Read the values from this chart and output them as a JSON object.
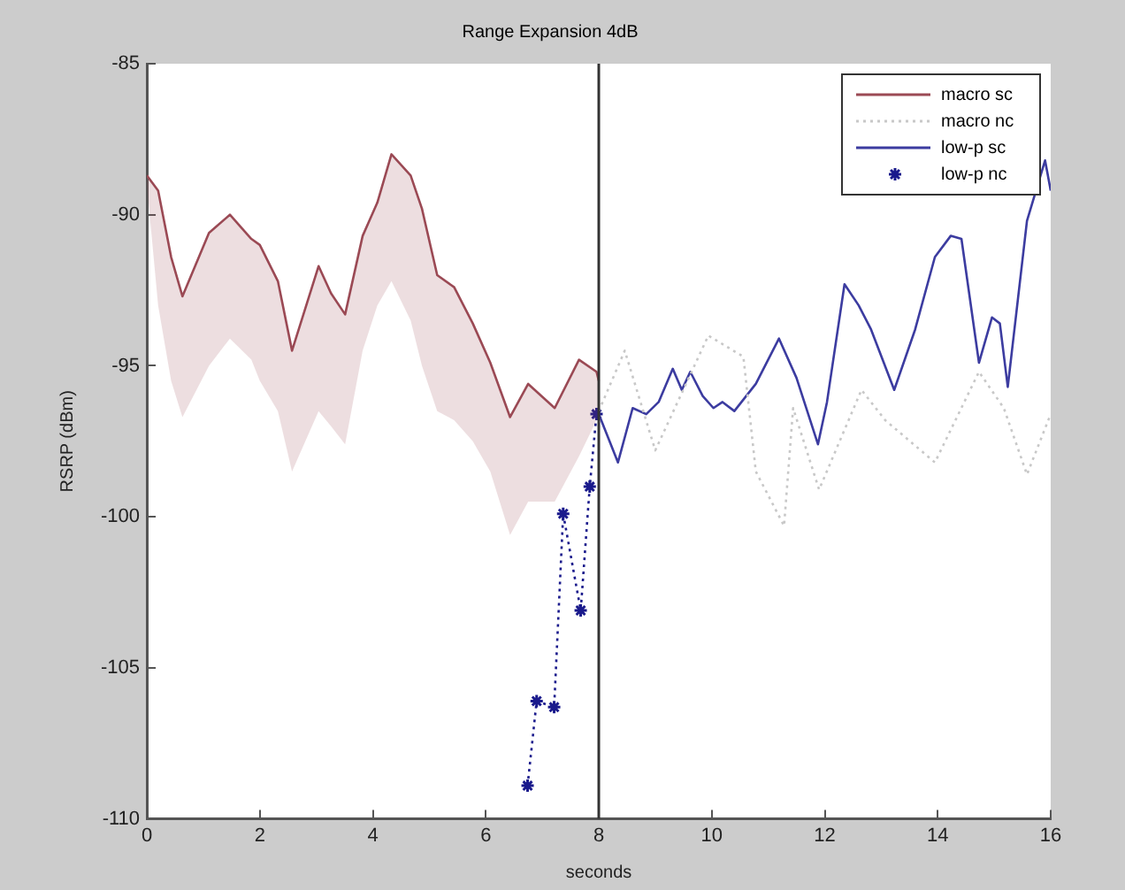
{
  "chart_data": {
    "type": "line",
    "title": "Range Expansion 4dB",
    "xlabel": "seconds",
    "ylabel": "RSRP (dBm)",
    "xlim": [
      0,
      16
    ],
    "xticks": [
      0,
      2,
      4,
      6,
      8,
      10,
      12,
      14,
      16
    ],
    "ylim": [
      -110,
      -85
    ],
    "yticks": [
      -110,
      -105,
      -100,
      -95,
      -90,
      -85
    ],
    "grid": false,
    "legend": "top right",
    "ref_lines": [
      {
        "axis": "x",
        "value": 8,
        "color": "#333333",
        "line_style": "solid"
      }
    ],
    "series": [
      {
        "name": "macro sc",
        "color": "#9b4a55",
        "line_style": "solid",
        "marker": "none",
        "x": [
          0,
          0.2,
          0.43,
          0.63,
          1.1,
          1.47,
          1.85,
          2.0,
          2.32,
          2.57,
          3.04,
          3.26,
          3.51,
          3.82,
          4.08,
          4.33,
          4.67,
          4.87,
          5.14,
          5.44,
          5.77,
          6.08,
          6.43,
          6.75,
          7.22,
          7.65,
          7.96,
          8
        ],
        "values": [
          -88.7,
          -89.2,
          -91.4,
          -92.7,
          -90.6,
          -90.0,
          -90.8,
          -91.0,
          -92.2,
          -94.5,
          -91.7,
          -92.6,
          -93.3,
          -90.7,
          -89.6,
          -88.0,
          -88.7,
          -89.8,
          -92.0,
          -92.4,
          -93.6,
          -94.9,
          -96.7,
          -95.6,
          -96.4,
          -94.8,
          -95.2,
          -95.5
        ],
        "upper": [
          -88.7,
          -89.2,
          -91.4,
          -92.7,
          -90.6,
          -90.0,
          -90.8,
          -91.0,
          -92.2,
          -94.5,
          -91.7,
          -92.6,
          -93.3,
          -90.7,
          -89.6,
          -88.0,
          -88.7,
          -89.8,
          -92.0,
          -92.4,
          -93.6,
          -94.9,
          -96.7,
          -95.6,
          -96.4,
          -94.8,
          -95.2,
          -95.5
        ],
        "lower": [
          -89.0,
          -93.0,
          -95.5,
          -96.7,
          -95.0,
          -94.1,
          -94.8,
          -95.5,
          -96.5,
          -98.5,
          -96.5,
          -97.0,
          -97.6,
          -94.5,
          -93.0,
          -92.2,
          -93.5,
          -95.0,
          -96.5,
          -96.8,
          -97.5,
          -98.5,
          -100.6,
          -99.5,
          -99.5,
          -98.0,
          -96.8,
          -96.5
        ]
      },
      {
        "name": "macro nc",
        "color": "#c8c8c8",
        "line_style": "dotted",
        "marker": "none",
        "x": [
          8,
          8.46,
          9.0,
          9.94,
          10.56,
          10.78,
          11.28,
          11.44,
          11.9,
          12.65,
          13.07,
          13.95,
          14.73,
          15.17,
          15.58,
          16
        ],
        "values": [
          -96.5,
          -94.5,
          -97.8,
          -94.0,
          -94.7,
          -98.5,
          -100.3,
          -96.4,
          -99.1,
          -95.8,
          -96.8,
          -98.2,
          -95.2,
          -96.4,
          -98.6,
          -96.6
        ]
      },
      {
        "name": "low-p sc",
        "color": "#3c3ca0",
        "line_style": "solid",
        "marker": "none",
        "x": [
          8,
          8.34,
          8.6,
          8.84,
          9.06,
          9.31,
          9.47,
          9.62,
          9.84,
          10.03,
          10.19,
          10.4,
          10.78,
          11.19,
          11.5,
          11.88,
          12.04,
          12.35,
          12.6,
          12.82,
          13.23,
          13.6,
          13.95,
          14.23,
          14.42,
          14.73,
          14.96,
          15.1,
          15.24,
          15.58,
          15.9,
          16
        ],
        "values": [
          -96.6,
          -98.2,
          -96.4,
          -96.6,
          -96.2,
          -95.1,
          -95.8,
          -95.2,
          -96.0,
          -96.4,
          -96.2,
          -96.5,
          -95.6,
          -94.1,
          -95.4,
          -97.6,
          -96.2,
          -92.3,
          -93.0,
          -93.8,
          -95.8,
          -93.8,
          -91.4,
          -90.7,
          -90.8,
          -94.9,
          -93.4,
          -93.6,
          -95.7,
          -90.2,
          -88.2,
          -89.2
        ]
      },
      {
        "name": "low-p nc",
        "color": "#1a1a8c",
        "line_style": "dotted",
        "marker": "cross",
        "x": [
          6.74,
          6.9,
          7.21,
          7.37,
          7.68,
          7.84,
          7.96
        ],
        "values": [
          -108.9,
          -106.1,
          -106.3,
          -99.9,
          -103.1,
          -99.0,
          -96.6
        ]
      }
    ]
  }
}
